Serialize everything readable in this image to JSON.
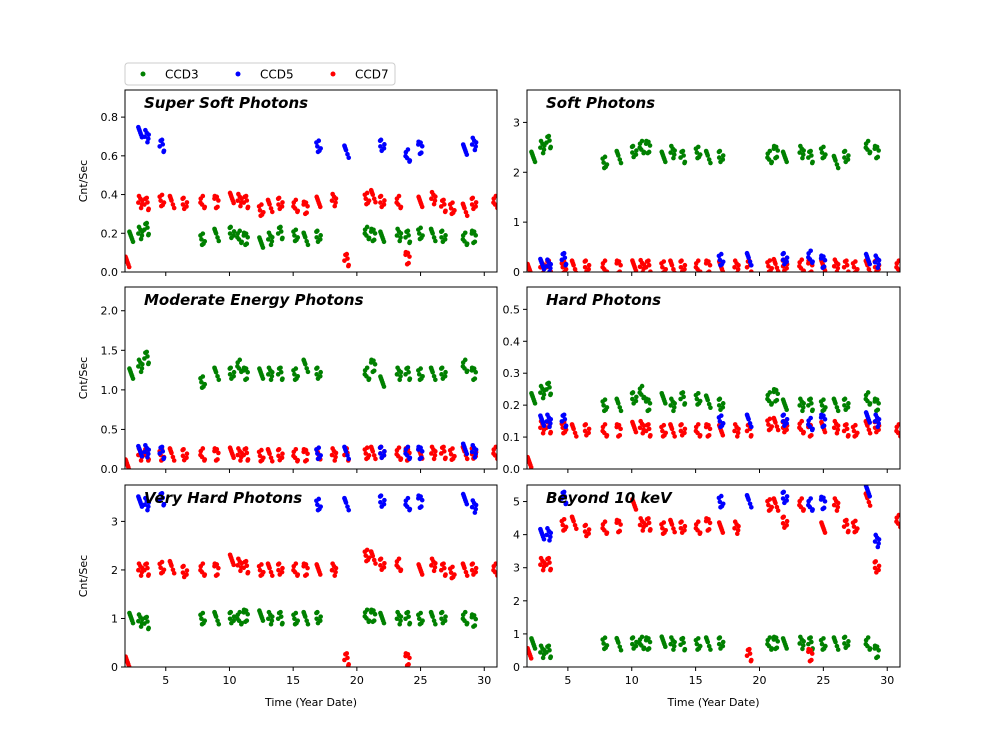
{
  "chart_data": {
    "type": "scatter",
    "xlabel": "Time (Year Date)",
    "ylabel": "Cnt/Sec",
    "xlim": [
      1.8,
      31
    ],
    "xticks": [
      5,
      10,
      15,
      20,
      25,
      30
    ],
    "legend": {
      "placement": "top-left, above plots",
      "entries": [
        "CCD3",
        "CCD5",
        "CCD7"
      ]
    },
    "colors": {
      "CCD3": "#008000",
      "CCD5": "#0000ff",
      "CCD7": "#ff0000"
    },
    "x_ccd3": [
      2.3,
      3.0,
      3.5,
      7.9,
      9.0,
      10.2,
      10.8,
      11.3,
      12.5,
      13.2,
      14.0,
      15.2,
      16.0,
      17.0,
      20.8,
      21.3,
      22.0,
      23.3,
      24.0,
      25.0,
      26.0,
      26.8,
      28.5,
      29.2
    ],
    "x_ccd5": [
      3.0,
      3.5,
      4.7,
      17.0,
      19.2,
      22.0,
      24.0,
      25.0,
      28.5,
      29.2
    ],
    "x_ccd7": [
      2.0,
      3.0,
      3.5,
      4.7,
      5.5,
      6.5,
      7.9,
      9.0,
      10.2,
      10.8,
      11.3,
      12.5,
      13.2,
      14.0,
      15.2,
      16.0,
      17.0,
      18.2,
      19.2,
      20.8,
      21.3,
      22.0,
      23.3,
      24.0,
      25.0,
      26.0,
      26.8,
      27.5,
      28.5,
      29.2,
      30.9
    ],
    "panels": [
      {
        "title": "Super Soft Photons",
        "ylim": [
          0,
          0.94
        ],
        "yticks": [
          "0.0",
          "0.2",
          "0.4",
          "0.6",
          "0.8"
        ],
        "ytick_values": [
          0,
          0.2,
          0.4,
          0.6,
          0.8
        ],
        "CCD3": [
          0.18,
          0.2,
          0.22,
          0.17,
          0.19,
          0.2,
          0.18,
          0.17,
          0.15,
          0.17,
          0.2,
          0.19,
          0.17,
          0.18,
          0.2,
          0.19,
          0.18,
          0.19,
          0.18,
          0.2,
          0.19,
          0.18,
          0.17,
          0.18
        ],
        "CCD5": [
          0.72,
          0.7,
          0.65,
          0.65,
          0.62,
          0.65,
          0.6,
          0.64,
          0.63,
          0.66
        ],
        "CCD7": [
          0.05,
          0.36,
          0.35,
          0.37,
          0.36,
          0.35,
          0.36,
          0.36,
          0.38,
          0.37,
          0.36,
          0.32,
          0.34,
          0.35,
          0.34,
          0.33,
          0.36,
          0.37,
          0.06,
          0.38,
          0.39,
          0.36,
          0.36,
          0.07,
          0.36,
          0.38,
          0.34,
          0.33,
          0.32,
          0.35,
          0.36
        ]
      },
      {
        "title": "Soft Photons",
        "ylim": [
          0,
          3.65
        ],
        "yticks": [
          "0",
          "1",
          "2",
          "3"
        ],
        "ytick_values": [
          0,
          1,
          2,
          3
        ],
        "CCD3": [
          2.3,
          2.5,
          2.6,
          2.2,
          2.3,
          2.4,
          2.5,
          2.5,
          2.3,
          2.4,
          2.3,
          2.4,
          2.3,
          2.3,
          2.3,
          2.4,
          2.3,
          2.4,
          2.3,
          2.4,
          2.2,
          2.3,
          2.5,
          2.4
        ],
        "CCD5": [
          0.15,
          0.12,
          0.25,
          0.25,
          0.25,
          0.25,
          0.3,
          0.2,
          0.25,
          0.2
        ],
        "CCD7": [
          0.05,
          0.1,
          0.1,
          0.1,
          0.1,
          0.1,
          0.1,
          0.1,
          0.12,
          0.11,
          0.1,
          0.1,
          0.1,
          0.1,
          0.1,
          0.1,
          0.1,
          0.1,
          0.1,
          0.12,
          0.13,
          0.12,
          0.12,
          0.1,
          0.12,
          0.12,
          0.1,
          0.1,
          0.1,
          0.1,
          0.1
        ]
      },
      {
        "title": "Moderate Energy Photons",
        "ylim": [
          0,
          2.3
        ],
        "yticks": [
          "0.0",
          "0.5",
          "1.0",
          "1.5",
          "2.0"
        ],
        "ytick_values": [
          0,
          0.5,
          1,
          1.5,
          2
        ],
        "CCD3": [
          1.2,
          1.3,
          1.4,
          1.1,
          1.2,
          1.2,
          1.3,
          1.2,
          1.2,
          1.2,
          1.2,
          1.2,
          1.3,
          1.2,
          1.2,
          1.3,
          1.1,
          1.2,
          1.2,
          1.2,
          1.2,
          1.2,
          1.3,
          1.2
        ],
        "CCD5": [
          0.22,
          0.22,
          0.2,
          0.2,
          0.2,
          0.2,
          0.2,
          0.2,
          0.25,
          0.22
        ],
        "CCD7": [
          0.05,
          0.18,
          0.18,
          0.18,
          0.18,
          0.17,
          0.18,
          0.18,
          0.2,
          0.18,
          0.18,
          0.17,
          0.17,
          0.17,
          0.17,
          0.17,
          0.18,
          0.18,
          0.18,
          0.2,
          0.2,
          0.2,
          0.19,
          0.18,
          0.19,
          0.2,
          0.2,
          0.19,
          0.2,
          0.19,
          0.2
        ]
      },
      {
        "title": "Hard Photons",
        "ylim": [
          0,
          0.57
        ],
        "yticks": [
          "0.0",
          "0.1",
          "0.2",
          "0.3",
          "0.4",
          "0.5"
        ],
        "ytick_values": [
          0,
          0.1,
          0.2,
          0.3,
          0.4,
          0.5
        ],
        "CCD3": [
          0.22,
          0.24,
          0.25,
          0.2,
          0.2,
          0.22,
          0.24,
          0.2,
          0.22,
          0.2,
          0.22,
          0.22,
          0.21,
          0.2,
          0.22,
          0.23,
          0.2,
          0.2,
          0.2,
          0.2,
          0.2,
          0.2,
          0.22,
          0.2
        ],
        "CCD5": [
          0.15,
          0.15,
          0.15,
          0.15,
          0.15,
          0.15,
          0.14,
          0.15,
          0.16,
          0.15
        ],
        "CCD7": [
          0.02,
          0.13,
          0.13,
          0.13,
          0.12,
          0.12,
          0.12,
          0.12,
          0.13,
          0.13,
          0.12,
          0.12,
          0.12,
          0.12,
          0.12,
          0.12,
          0.12,
          0.12,
          0.12,
          0.14,
          0.14,
          0.13,
          0.13,
          0.12,
          0.13,
          0.13,
          0.12,
          0.12,
          0.13,
          0.13,
          0.12
        ]
      },
      {
        "title": "Very Hard Photons",
        "ylim": [
          0,
          3.75
        ],
        "yticks": [
          "0",
          "1",
          "2",
          "3"
        ],
        "ytick_values": [
          0,
          1,
          2,
          3
        ],
        "CCD3": [
          1.0,
          0.95,
          0.9,
          1.0,
          1.0,
          1.0,
          1.0,
          1.05,
          1.05,
          1.0,
          1.0,
          1.0,
          1.0,
          1.0,
          1.05,
          1.05,
          1.0,
          1.0,
          1.0,
          1.0,
          1.0,
          1.0,
          1.0,
          0.95
        ],
        "CCD5": [
          3.4,
          3.35,
          3.45,
          3.35,
          3.35,
          3.4,
          3.35,
          3.4,
          3.45,
          3.3
        ],
        "CCD7": [
          0.1,
          2.0,
          2.0,
          2.05,
          2.05,
          1.95,
          2.0,
          2.0,
          2.2,
          2.1,
          2.05,
          2.0,
          2.0,
          2.0,
          2.0,
          2.0,
          2.0,
          2.0,
          0.15,
          2.3,
          2.25,
          2.1,
          2.1,
          0.15,
          2.0,
          2.1,
          2.0,
          1.95,
          2.0,
          2.0,
          2.0
        ]
      },
      {
        "title": "Beyond 10 keV",
        "ylim": [
          0,
          5.5
        ],
        "yticks": [
          "0",
          "1",
          "2",
          "3",
          "4",
          "5"
        ],
        "ytick_values": [
          0,
          1,
          2,
          3,
          4,
          5
        ],
        "CCD3": [
          0.7,
          0.45,
          0.45,
          0.72,
          0.68,
          0.7,
          0.72,
          0.7,
          0.75,
          0.7,
          0.68,
          0.7,
          0.7,
          0.7,
          0.7,
          0.72,
          0.7,
          0.72,
          0.7,
          0.7,
          0.7,
          0.72,
          0.7,
          0.45
        ],
        "CCD5": [
          4.0,
          4.0,
          5.1,
          5.0,
          5.0,
          5.1,
          4.9,
          4.95,
          5.3,
          3.8
        ],
        "CCD7": [
          0.4,
          3.1,
          3.1,
          4.3,
          4.35,
          4.1,
          4.2,
          4.25,
          4.9,
          4.3,
          4.3,
          4.2,
          4.25,
          4.2,
          4.2,
          4.3,
          4.2,
          4.2,
          0.35,
          4.9,
          4.9,
          4.35,
          4.9,
          0.35,
          4.2,
          4.9,
          4.25,
          4.25,
          5.05,
          3.0,
          4.4
        ]
      }
    ]
  }
}
